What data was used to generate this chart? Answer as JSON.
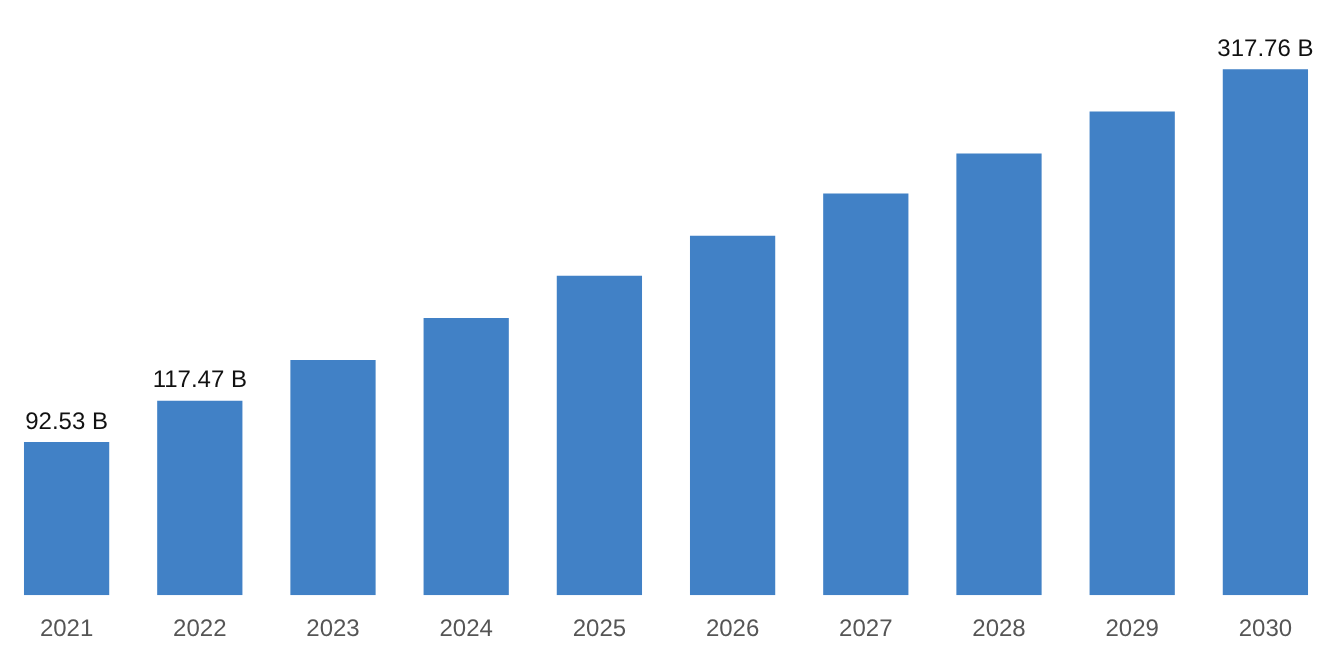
{
  "chart_data": {
    "type": "bar",
    "categories": [
      "2021",
      "2022",
      "2023",
      "2024",
      "2025",
      "2026",
      "2027",
      "2028",
      "2029",
      "2030"
    ],
    "values": [
      92.53,
      117.47,
      142.1,
      167.5,
      193.0,
      217.2,
      242.7,
      266.9,
      292.3,
      317.76
    ],
    "value_labels": [
      "92.53 B",
      "117.47 B",
      null,
      null,
      null,
      null,
      null,
      null,
      null,
      "317.76 B"
    ],
    "color": "#4181c6",
    "grid": false,
    "legend": false
  }
}
